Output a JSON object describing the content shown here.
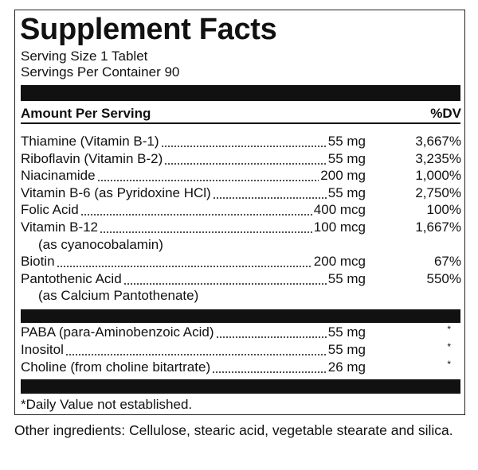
{
  "title": "Supplement Facts",
  "serving_size": "Serving Size 1 Tablet",
  "servings_per_container": "Servings Per Container 90",
  "header": {
    "amount": "Amount Per Serving",
    "dv": "%DV"
  },
  "nutrients": [
    {
      "name": "Thiamine (Vitamin B-1)",
      "amount": "55 mg",
      "dv": "3,667%"
    },
    {
      "name": "Riboflavin (Vitamin B-2)",
      "amount": "55 mg",
      "dv": "3,235%"
    },
    {
      "name": "Niacinamide",
      "amount": "200 mg",
      "dv": "1,000%"
    },
    {
      "name": "Vitamin B-6 (as Pyridoxine HCl)",
      "amount": "55 mg",
      "dv": "2,750%"
    },
    {
      "name": "Folic Acid",
      "amount": "400 mcg",
      "dv": "100%"
    },
    {
      "name": "Vitamin B-12",
      "amount": "100 mcg",
      "dv": "1,667%",
      "note": "(as cyanocobalamin)"
    },
    {
      "name": "Biotin",
      "amount": "200 mcg",
      "dv": "67%"
    },
    {
      "name": "Pantothenic Acid",
      "amount": "55 mg",
      "dv": "550%",
      "note": "(as Calcium Pantothenate)"
    }
  ],
  "other_nutrients": [
    {
      "name": "PABA (para-Aminobenzoic Acid)",
      "amount": "55 mg",
      "dv": "*"
    },
    {
      "name": "Inositol",
      "amount": "55 mg",
      "dv": "*"
    },
    {
      "name": "Choline (from choline bitartrate)",
      "amount": "26 mg",
      "dv": "*"
    }
  ],
  "footnote": "*Daily Value not established.",
  "other_ingredients": "Other ingredients: Cellulose, stearic acid, vegetable stearate and silica."
}
